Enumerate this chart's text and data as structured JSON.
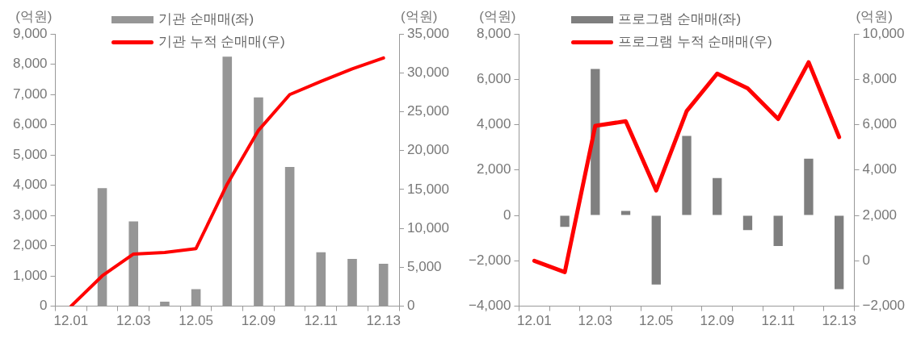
{
  "chart_data": [
    {
      "type": "bar",
      "categories": [
        "12.01",
        null,
        "12.03",
        null,
        "12.05",
        null,
        "12.09",
        null,
        "12.11",
        null,
        "12.13"
      ],
      "series": [
        {
          "name": "기관 순매매(좌)",
          "color": "#969696",
          "values": [
            0,
            3900,
            2800,
            150,
            560,
            8250,
            6900,
            4600,
            1780,
            1560,
            1400
          ]
        },
        {
          "name": "기관 누적 순매매(우)",
          "type": "line",
          "axis": "y2",
          "color": "#ff0000",
          "values": [
            0,
            3900,
            6700,
            6900,
            7400,
            15700,
            22600,
            27200,
            28900,
            30500,
            31900
          ]
        }
      ],
      "ylabel": "(억원)",
      "y2label": "(억원)",
      "ylim": [
        0,
        9000
      ],
      "yticks": [
        0,
        {
          "value": 1000,
          "label": "1,000"
        },
        {
          "value": 2000,
          "label": "2,000"
        },
        {
          "value": 3000,
          "label": "3,000"
        },
        {
          "value": 4000,
          "label": "4,000"
        },
        {
          "value": 5000,
          "label": "5,000"
        },
        {
          "value": 6000,
          "label": "6,000"
        },
        {
          "value": 7000,
          "label": "7,000"
        },
        {
          "value": 8000,
          "label": "8,000"
        },
        {
          "value": 9000,
          "label": "9,000"
        }
      ],
      "y2lim": [
        0,
        35000
      ],
      "y2ticks": [
        0,
        {
          "value": 5000,
          "label": "5,000"
        },
        {
          "value": 10000,
          "label": "10,000"
        },
        {
          "value": 15000,
          "label": "15,000"
        },
        {
          "value": 20000,
          "label": "20,000"
        },
        {
          "value": 25000,
          "label": "25,000"
        },
        {
          "value": 30000,
          "label": "30,000"
        },
        {
          "value": 35000,
          "label": "35,000"
        }
      ],
      "legend": "top",
      "marker": "none",
      "grid": false
    },
    {
      "type": "bar",
      "categories": [
        "12.01",
        null,
        "12.03",
        null,
        "12.05",
        null,
        "12.09",
        null,
        "12.11",
        null,
        "12.13"
      ],
      "series": [
        {
          "name": "프로그램 순매매(좌)",
          "color": "#7f7f7f",
          "values": [
            0,
            -500,
            6450,
            200,
            -3050,
            3500,
            1650,
            -650,
            -1350,
            2500,
            -3250
          ]
        },
        {
          "name": "프로그램 누적 순매매(우)",
          "type": "line",
          "axis": "y2",
          "color": "#ff0000",
          "values": [
            0,
            -500,
            5950,
            6150,
            3100,
            6600,
            8250,
            7600,
            6250,
            8750,
            5450
          ]
        }
      ],
      "ylabel": "(억원)",
      "y2label": "(억원)",
      "ylim": [
        -4000,
        8000
      ],
      "yticks": [
        {
          "value": -4000,
          "label": "−4,000"
        },
        {
          "value": -2000,
          "label": "−2,000"
        },
        0,
        {
          "value": 2000,
          "label": "2,000"
        },
        {
          "value": 4000,
          "label": "4,000"
        },
        {
          "value": 6000,
          "label": "6,000"
        },
        {
          "value": 8000,
          "label": "8,000"
        }
      ],
      "y2lim": [
        -2000,
        10000
      ],
      "y2ticks": [
        {
          "value": -2000,
          "label": "−2,000"
        },
        0,
        {
          "value": 2000,
          "label": "2,000"
        },
        {
          "value": 4000,
          "label": "4,000"
        },
        {
          "value": 6000,
          "label": "6,000"
        },
        {
          "value": 8000,
          "label": "8,000"
        },
        {
          "value": 10000,
          "label": "10,000"
        }
      ],
      "legend": "top",
      "marker": "none",
      "grid": false
    }
  ]
}
